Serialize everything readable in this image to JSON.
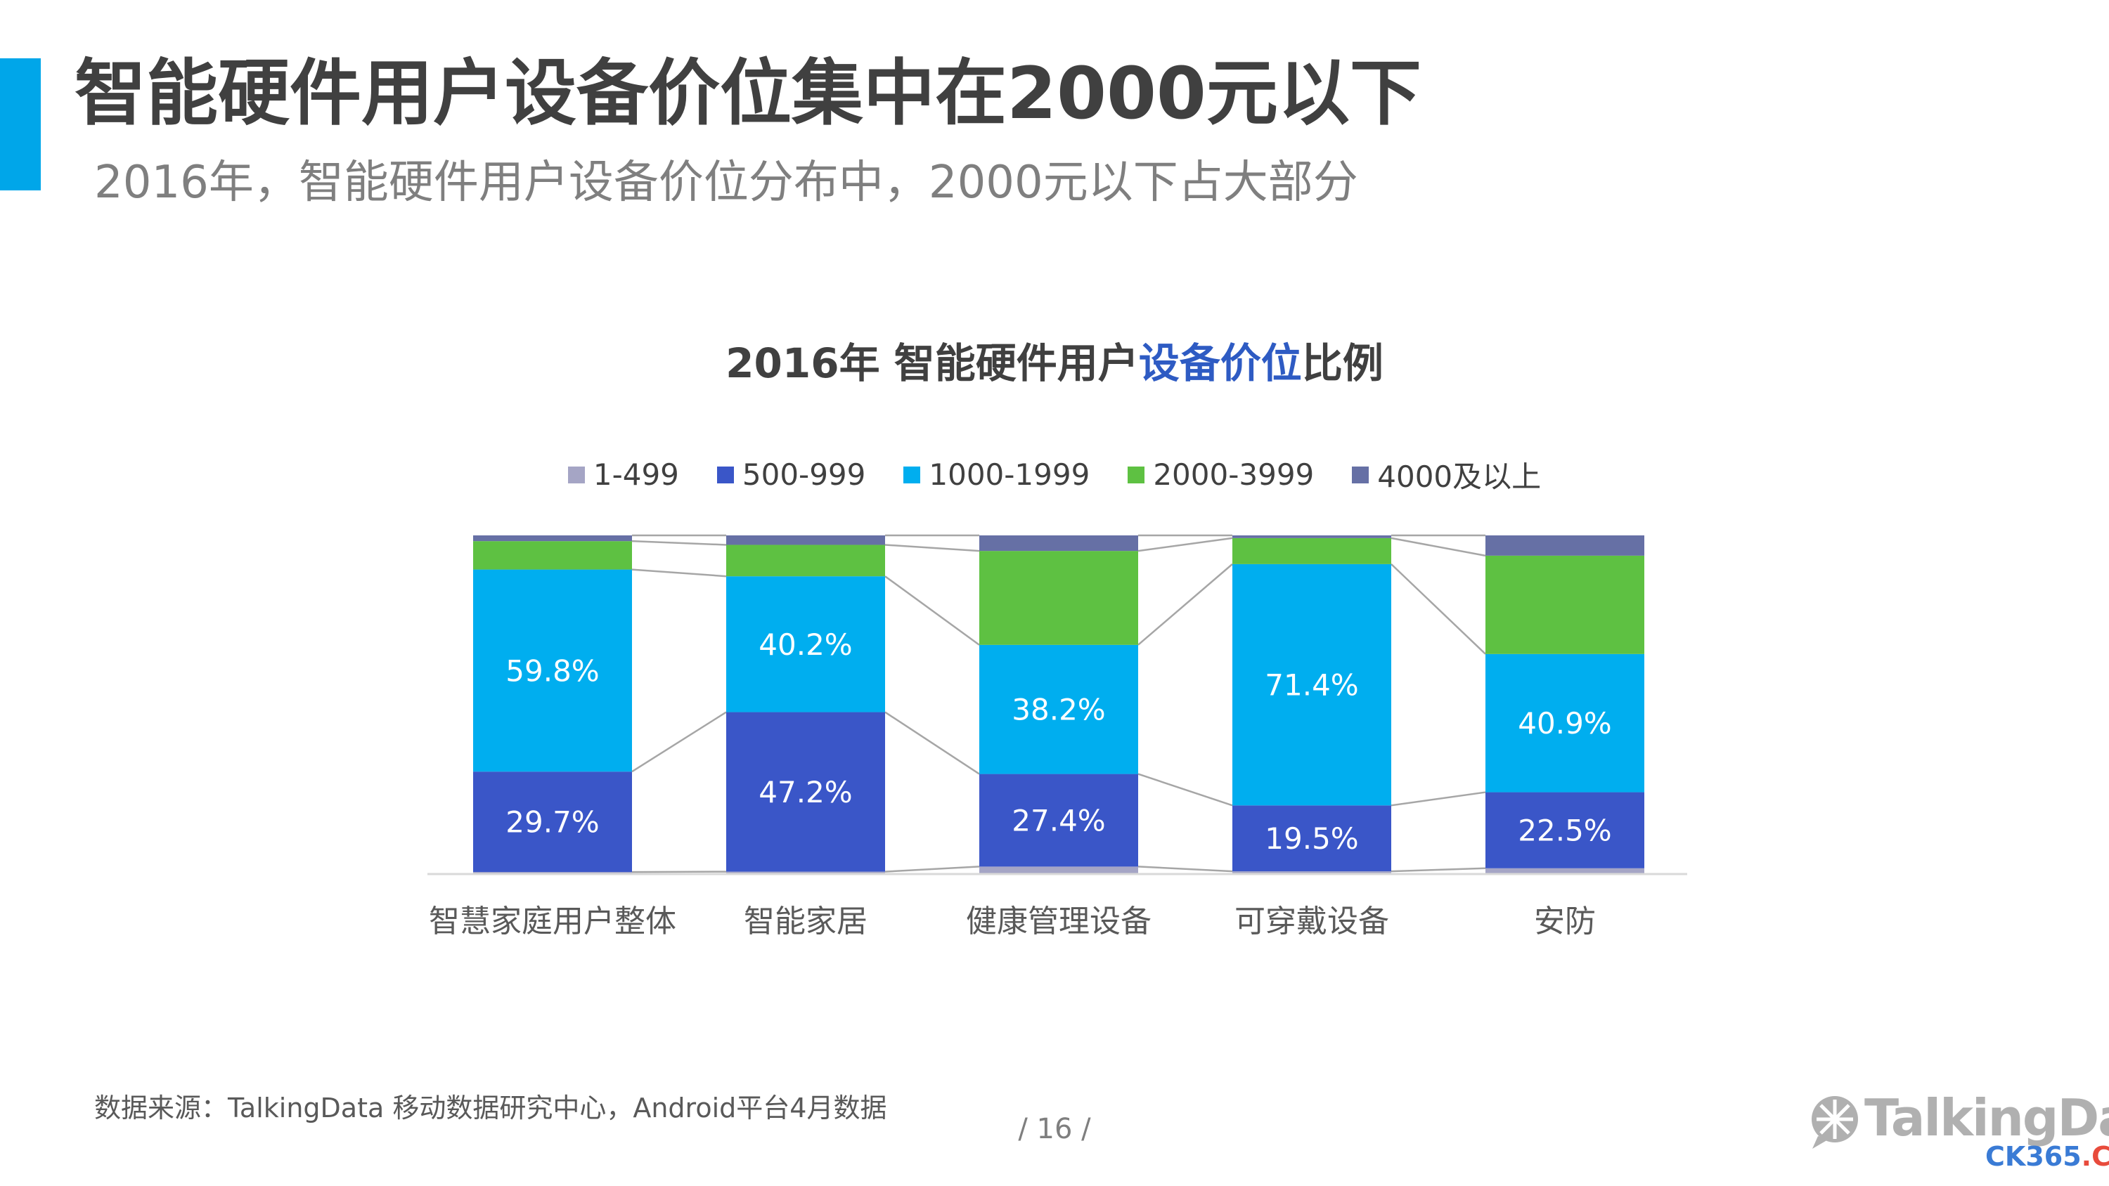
{
  "slide": {
    "title": "智能硬件用户设备价位集中在2000元以下",
    "subtitle": "2016年，智能硬件用户设备价位分布中，2000元以下占大部分",
    "source": "数据来源：TalkingData 移动数据研究中心，Android平台4月数据",
    "page_number": "/  16  /",
    "logo_text": "TalkingData",
    "watermark_part1": "CK365",
    "watermark_part2": ".CN"
  },
  "chart_data": {
    "type": "bar",
    "stacked": true,
    "percent_stacked": true,
    "title": {
      "part1": "2016年 智能硬件用户",
      "highlight": "设备价位",
      "part2": "比例"
    },
    "categories": [
      "智慧家庭用户整体",
      "智能家居",
      "健康管理设备",
      "可穿戴设备",
      "安防"
    ],
    "legend_position": "top",
    "grid": false,
    "connector_lines": true,
    "series": [
      {
        "name": "1-499",
        "color": "#a5a5c5",
        "values": [
          0.4,
          0.5,
          2.0,
          0.6,
          1.5
        ],
        "labels": [
          "",
          "",
          "",
          "",
          ""
        ]
      },
      {
        "name": "500-999",
        "color": "#3a56c8",
        "values": [
          29.7,
          47.2,
          27.4,
          19.5,
          22.5
        ],
        "labels": [
          "29.7%",
          "47.2%",
          "27.4%",
          "19.5%",
          "22.5%"
        ]
      },
      {
        "name": "1000-1999",
        "color": "#00aeef",
        "values": [
          59.8,
          40.2,
          38.2,
          71.4,
          40.9
        ],
        "labels": [
          "59.8%",
          "40.2%",
          "38.2%",
          "71.4%",
          "40.9%"
        ]
      },
      {
        "name": "2000-3999",
        "color": "#5ec142",
        "values": [
          8.4,
          9.3,
          27.8,
          7.7,
          29.1
        ],
        "labels": [
          "",
          "",
          "",
          "",
          ""
        ]
      },
      {
        "name": "4000及以上",
        "color": "#6670a5",
        "values": [
          1.7,
          2.8,
          4.6,
          0.8,
          6.0
        ],
        "labels": [
          "",
          "",
          "",
          "",
          ""
        ]
      }
    ]
  }
}
